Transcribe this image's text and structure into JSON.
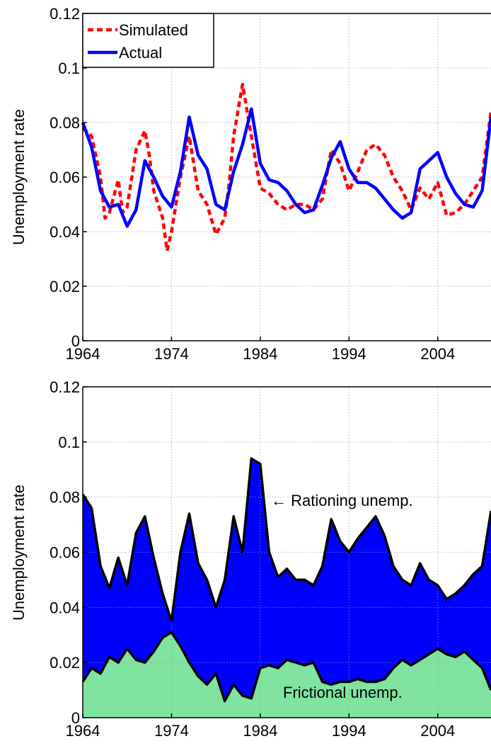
{
  "chart_data": [
    {
      "type": "line",
      "ylabel": "Unemployment rate",
      "xlim": [
        1964,
        2010
      ],
      "ylim": [
        0,
        0.12
      ],
      "xticks": [
        "1964",
        "1974",
        "1984",
        "1994",
        "2004"
      ],
      "yticks": [
        "0",
        "0.02",
        "0.04",
        "0.06",
        "0.08",
        "0.1",
        "0.12"
      ],
      "grid": true,
      "legend_position": "top-left",
      "series": [
        {
          "name": "Simulated",
          "color": "#ff0000",
          "style": "dashed",
          "x": [
            1964,
            1965,
            1966,
            1966.5,
            1967,
            1968,
            1968.5,
            1969,
            1970,
            1971,
            1971.5,
            1972,
            1973,
            1973.5,
            1974,
            1975,
            1976,
            1977,
            1978,
            1979,
            1980,
            1980.5,
            1981,
            1982,
            1983,
            1984,
            1985,
            1986,
            1987,
            1988,
            1989,
            1990,
            1991,
            1992,
            1993,
            1994,
            1995,
            1996,
            1997,
            1998,
            1999,
            2000,
            2001,
            2002,
            2003,
            2004,
            2005,
            2006,
            2007,
            2008,
            2009,
            2010
          ],
          "y": [
            0.078,
            0.075,
            0.06,
            0.045,
            0.047,
            0.059,
            0.047,
            0.049,
            0.07,
            0.077,
            0.068,
            0.055,
            0.045,
            0.033,
            0.04,
            0.06,
            0.075,
            0.055,
            0.05,
            0.039,
            0.045,
            0.058,
            0.075,
            0.094,
            0.075,
            0.056,
            0.054,
            0.05,
            0.048,
            0.05,
            0.05,
            0.048,
            0.052,
            0.07,
            0.065,
            0.055,
            0.062,
            0.07,
            0.072,
            0.068,
            0.06,
            0.055,
            0.048,
            0.056,
            0.052,
            0.058,
            0.046,
            0.047,
            0.05,
            0.055,
            0.06,
            0.084
          ]
        },
        {
          "name": "Actual",
          "color": "#0000ff",
          "style": "solid",
          "x": [
            1964,
            1965,
            1966,
            1967,
            1968,
            1969,
            1970,
            1971,
            1972,
            1973,
            1974,
            1975,
            1976,
            1977,
            1978,
            1979,
            1980,
            1981,
            1982,
            1983,
            1984,
            1985,
            1986,
            1987,
            1988,
            1989,
            1990,
            1991,
            1992,
            1993,
            1994,
            1995,
            1996,
            1997,
            1998,
            1999,
            2000,
            2001,
            2002,
            2003,
            2004,
            2005,
            2006,
            2007,
            2008,
            2009,
            2010
          ],
          "y": [
            0.08,
            0.071,
            0.055,
            0.049,
            0.05,
            0.042,
            0.048,
            0.066,
            0.06,
            0.053,
            0.049,
            0.062,
            0.082,
            0.068,
            0.063,
            0.05,
            0.048,
            0.062,
            0.072,
            0.085,
            0.065,
            0.059,
            0.058,
            0.055,
            0.05,
            0.047,
            0.048,
            0.057,
            0.067,
            0.073,
            0.063,
            0.058,
            0.058,
            0.056,
            0.052,
            0.048,
            0.045,
            0.047,
            0.063,
            0.066,
            0.069,
            0.06,
            0.054,
            0.05,
            0.049,
            0.055,
            0.082
          ]
        }
      ]
    },
    {
      "type": "area",
      "ylabel": "Unemployment rate",
      "xlim": [
        1964,
        2010
      ],
      "ylim": [
        0,
        0.12
      ],
      "xticks": [
        "1964",
        "1974",
        "1984",
        "1994",
        "2004"
      ],
      "yticks": [
        "0",
        "0.02",
        "0.04",
        "0.06",
        "0.08",
        "0.1",
        "0.12"
      ],
      "grid": true,
      "annotations": [
        "← Rationing unemp.",
        "Frictional unemp."
      ],
      "series": [
        {
          "name": "Frictional unemp.",
          "color": "#80e3a0",
          "x": [
            1964,
            1965,
            1966,
            1967,
            1968,
            1969,
            1970,
            1971,
            1972,
            1973,
            1974,
            1975,
            1976,
            1977,
            1978,
            1979,
            1980,
            1981,
            1982,
            1983,
            1984,
            1985,
            1986,
            1987,
            1988,
            1989,
            1990,
            1991,
            1992,
            1993,
            1994,
            1995,
            1996,
            1997,
            1998,
            1999,
            2000,
            2001,
            2002,
            2003,
            2004,
            2005,
            2006,
            2007,
            2008,
            2009,
            2010
          ],
          "y": [
            0.013,
            0.018,
            0.016,
            0.022,
            0.02,
            0.025,
            0.021,
            0.02,
            0.024,
            0.029,
            0.031,
            0.026,
            0.02,
            0.015,
            0.012,
            0.016,
            0.006,
            0.012,
            0.008,
            0.007,
            0.018,
            0.019,
            0.018,
            0.021,
            0.02,
            0.019,
            0.02,
            0.013,
            0.012,
            0.013,
            0.013,
            0.014,
            0.013,
            0.013,
            0.014,
            0.018,
            0.021,
            0.019,
            0.021,
            0.023,
            0.025,
            0.023,
            0.022,
            0.024,
            0.021,
            0.018,
            0.01
          ]
        },
        {
          "name": "Rationing unemp.",
          "color": "#0000ff",
          "x": [
            1964,
            1965,
            1966,
            1967,
            1968,
            1969,
            1970,
            1971,
            1972,
            1973,
            1974,
            1975,
            1976,
            1977,
            1978,
            1979,
            1980,
            1981,
            1982,
            1983,
            1984,
            1985,
            1986,
            1987,
            1988,
            1989,
            1990,
            1991,
            1992,
            1993,
            1994,
            1995,
            1996,
            1997,
            1998,
            1999,
            2000,
            2001,
            2002,
            2003,
            2004,
            2005,
            2006,
            2007,
            2008,
            2009,
            2010
          ],
          "y": [
            0.081,
            0.076,
            0.055,
            0.047,
            0.058,
            0.048,
            0.067,
            0.073,
            0.058,
            0.045,
            0.035,
            0.06,
            0.074,
            0.056,
            0.05,
            0.04,
            0.05,
            0.073,
            0.06,
            0.094,
            0.092,
            0.06,
            0.051,
            0.054,
            0.05,
            0.05,
            0.048,
            0.055,
            0.072,
            0.064,
            0.06,
            0.065,
            0.069,
            0.073,
            0.066,
            0.055,
            0.05,
            0.048,
            0.056,
            0.05,
            0.048,
            0.043,
            0.045,
            0.048,
            0.052,
            0.055,
            0.075
          ]
        }
      ]
    }
  ]
}
